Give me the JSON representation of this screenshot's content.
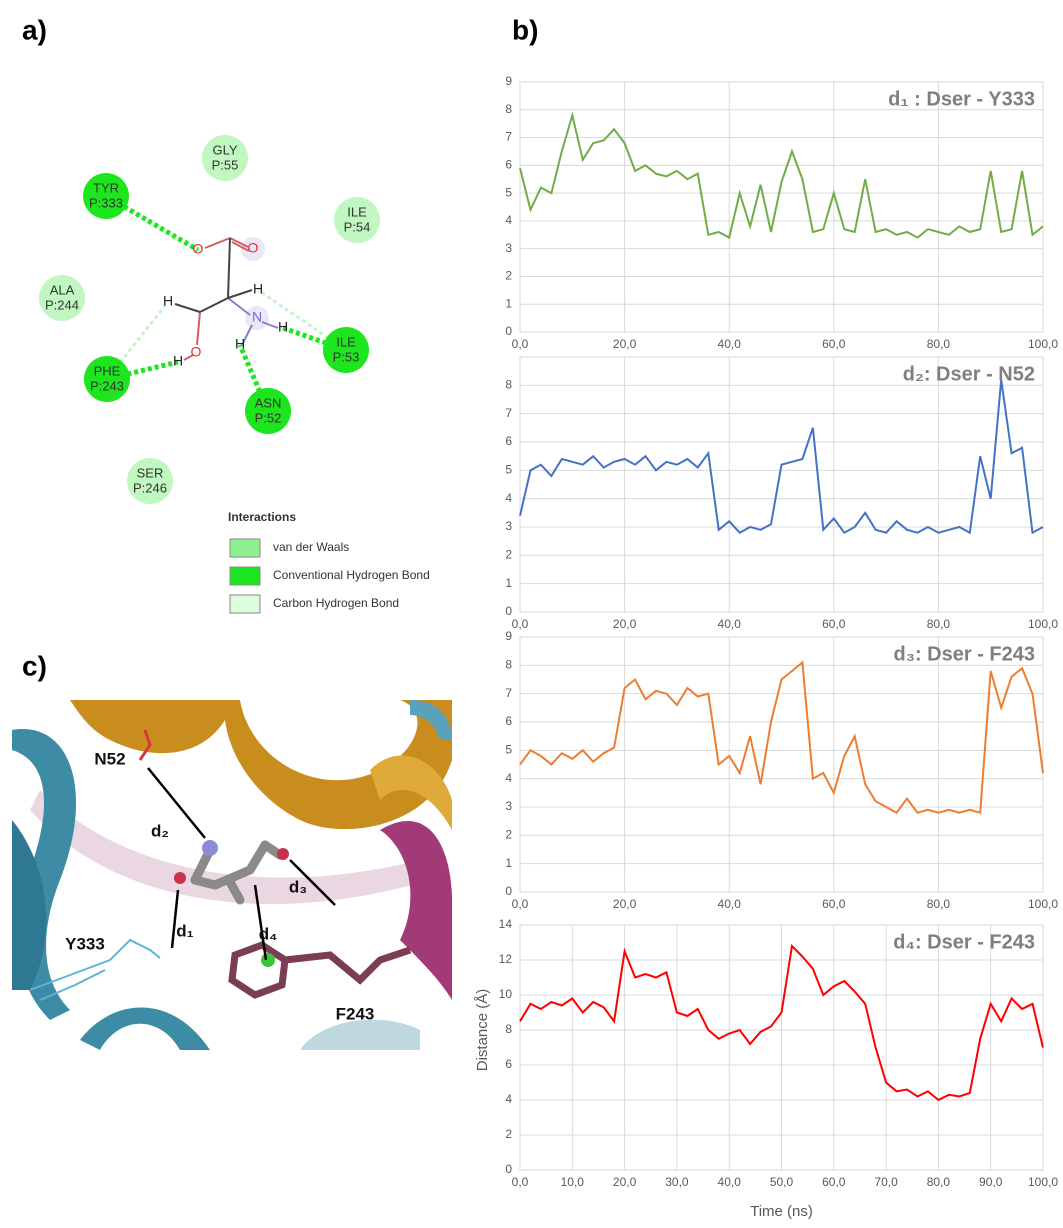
{
  "panel_labels": [
    "a)",
    "b)",
    "c)"
  ],
  "interaction_diagram": {
    "residues": [
      {
        "name": "GLY",
        "id": "P:55",
        "kind": "vdw"
      },
      {
        "name": "TYR",
        "id": "P:333",
        "kind": "hbond"
      },
      {
        "name": "ILE",
        "id": "P:54",
        "kind": "vdw"
      },
      {
        "name": "ALA",
        "id": "P:244",
        "kind": "vdw"
      },
      {
        "name": "PHE",
        "id": "P:243",
        "kind": "hbond"
      },
      {
        "name": "ILE",
        "id": "P:53",
        "kind": "hbond"
      },
      {
        "name": "ASN",
        "id": "P:52",
        "kind": "hbond"
      },
      {
        "name": "SER",
        "id": "P:246",
        "kind": "vdw"
      }
    ],
    "atoms": [
      "O",
      "O",
      "H",
      "H",
      "N",
      "H",
      "H",
      "O",
      "H"
    ],
    "legend": {
      "title": "Interactions",
      "items": [
        {
          "label": "van der Waals",
          "kind": "vdw",
          "color": "#8ef08e"
        },
        {
          "label": "Conventional Hydrogen Bond",
          "kind": "hbond",
          "color": "#1ee61e"
        },
        {
          "label": "Carbon Hydrogen Bond",
          "kind": "chbond",
          "color": "#dcfcdc"
        }
      ]
    }
  },
  "structure_labels": [
    "N52",
    "d₂",
    "d₃",
    "d₁",
    "d₄",
    "Y333",
    "F243"
  ],
  "chart_data": [
    {
      "type": "line",
      "title": "d₁ : Dser - Y333",
      "color": "#70ad47",
      "x": [
        0,
        2,
        4,
        6,
        8,
        10,
        12,
        14,
        16,
        18,
        20,
        22,
        24,
        26,
        28,
        30,
        32,
        34,
        36,
        38,
        40,
        42,
        44,
        46,
        48,
        50,
        52,
        54,
        56,
        58,
        60,
        62,
        64,
        66,
        68,
        70,
        72,
        74,
        76,
        78,
        80,
        82,
        84,
        86,
        88,
        90,
        92,
        94,
        96,
        98,
        100
      ],
      "values": [
        5.9,
        4.4,
        5.2,
        5.0,
        6.5,
        7.8,
        6.2,
        6.8,
        6.9,
        7.3,
        6.8,
        5.8,
        6.0,
        5.7,
        5.6,
        5.8,
        5.5,
        5.7,
        3.5,
        3.6,
        3.4,
        5.0,
        3.8,
        5.3,
        3.6,
        5.4,
        6.5,
        5.5,
        3.6,
        3.7,
        5.0,
        3.7,
        3.6,
        5.5,
        3.6,
        3.7,
        3.5,
        3.6,
        3.4,
        3.7,
        3.6,
        3.5,
        3.8,
        3.6,
        3.7,
        5.8,
        3.6,
        3.7,
        5.8,
        3.5,
        3.8
      ],
      "xlim": [
        0,
        100
      ],
      "ylim": [
        0,
        9
      ],
      "xticks": [
        {
          "value": 0,
          "label": "0,0"
        },
        {
          "value": 20,
          "label": "20,0"
        },
        {
          "value": 40,
          "label": "40,0"
        },
        {
          "value": 60,
          "label": "60,0"
        },
        {
          "value": 80,
          "label": "80,0"
        },
        {
          "value": 100,
          "label": "100,0"
        }
      ],
      "yticks": [
        0,
        1,
        2,
        3,
        4,
        5,
        6,
        7,
        8,
        9
      ],
      "grid": true
    },
    {
      "type": "line",
      "title": "d₂: Dser - N52",
      "color": "#4472c4",
      "x": [
        0,
        2,
        4,
        6,
        8,
        10,
        12,
        14,
        16,
        18,
        20,
        22,
        24,
        26,
        28,
        30,
        32,
        34,
        36,
        38,
        40,
        42,
        44,
        46,
        48,
        50,
        52,
        54,
        56,
        58,
        60,
        62,
        64,
        66,
        68,
        70,
        72,
        74,
        76,
        78,
        80,
        82,
        84,
        86,
        88,
        90,
        92,
        94,
        96,
        98,
        100
      ],
      "values": [
        3.4,
        5.0,
        5.2,
        4.8,
        5.4,
        5.3,
        5.2,
        5.5,
        5.1,
        5.3,
        5.4,
        5.2,
        5.5,
        5.0,
        5.3,
        5.2,
        5.4,
        5.1,
        5.6,
        2.9,
        3.2,
        2.8,
        3.0,
        2.9,
        3.1,
        5.2,
        5.3,
        5.4,
        6.5,
        2.9,
        3.3,
        2.8,
        3.0,
        3.5,
        2.9,
        2.8,
        3.2,
        2.9,
        2.8,
        3.0,
        2.8,
        2.9,
        3.0,
        2.8,
        5.5,
        4.0,
        8.2,
        5.6,
        5.8,
        2.8,
        3.0
      ],
      "xlim": [
        0,
        100
      ],
      "ylim": [
        0,
        9
      ],
      "xticks": [
        {
          "value": 0,
          "label": "0,0"
        },
        {
          "value": 20,
          "label": "20,0"
        },
        {
          "value": 40,
          "label": "40,0"
        },
        {
          "value": 60,
          "label": "60,0"
        },
        {
          "value": 80,
          "label": "80,0"
        },
        {
          "value": 100,
          "label": "100,0"
        }
      ],
      "yticks": [
        0,
        1,
        2,
        3,
        4,
        5,
        6,
        7,
        8
      ],
      "grid": true
    },
    {
      "type": "line",
      "title": "d₃: Dser - F243",
      "color": "#ed7d31",
      "x": [
        0,
        2,
        4,
        6,
        8,
        10,
        12,
        14,
        16,
        18,
        20,
        22,
        24,
        26,
        28,
        30,
        32,
        34,
        36,
        38,
        40,
        42,
        44,
        46,
        48,
        50,
        52,
        54,
        56,
        58,
        60,
        62,
        64,
        66,
        68,
        70,
        72,
        74,
        76,
        78,
        80,
        82,
        84,
        86,
        88,
        90,
        92,
        94,
        96,
        98,
        100
      ],
      "values": [
        4.5,
        5.0,
        4.8,
        4.5,
        4.9,
        4.7,
        5.0,
        4.6,
        4.9,
        5.1,
        7.2,
        7.5,
        6.8,
        7.1,
        7.0,
        6.6,
        7.2,
        6.9,
        7.0,
        4.5,
        4.8,
        4.2,
        5.5,
        3.8,
        6.0,
        7.5,
        7.8,
        8.1,
        4.0,
        4.2,
        3.5,
        4.8,
        5.5,
        3.8,
        3.2,
        3.0,
        2.8,
        3.3,
        2.8,
        2.9,
        2.8,
        2.9,
        2.8,
        2.9,
        2.8,
        7.8,
        6.5,
        7.6,
        7.9,
        7.0,
        4.2
      ],
      "xlim": [
        0,
        100
      ],
      "ylim": [
        0,
        9
      ],
      "xticks": [
        {
          "value": 0,
          "label": "0,0"
        },
        {
          "value": 20,
          "label": "20,0"
        },
        {
          "value": 40,
          "label": "40,0"
        },
        {
          "value": 60,
          "label": "60,0"
        },
        {
          "value": 80,
          "label": "80,0"
        },
        {
          "value": 100,
          "label": "100,0"
        }
      ],
      "yticks": [
        0,
        1,
        2,
        3,
        4,
        5,
        6,
        7,
        8,
        9
      ],
      "grid": true
    },
    {
      "type": "line",
      "title": "d₄: Dser - F243",
      "color": "#ff0000",
      "x_label": "Time (ns)",
      "y_label": "Distance (Å)",
      "x": [
        0,
        2,
        4,
        6,
        8,
        10,
        12,
        14,
        16,
        18,
        20,
        22,
        24,
        26,
        28,
        30,
        32,
        34,
        36,
        38,
        40,
        42,
        44,
        46,
        48,
        50,
        52,
        54,
        56,
        58,
        60,
        62,
        64,
        66,
        68,
        70,
        72,
        74,
        76,
        78,
        80,
        82,
        84,
        86,
        88,
        90,
        92,
        94,
        96,
        98,
        100
      ],
      "values": [
        8.5,
        9.5,
        9.2,
        9.6,
        9.4,
        9.8,
        9.0,
        9.6,
        9.3,
        8.5,
        12.5,
        11.0,
        11.2,
        11.0,
        11.3,
        9.0,
        8.8,
        9.2,
        8.0,
        7.5,
        7.8,
        8.0,
        7.2,
        7.9,
        8.2,
        9.0,
        12.8,
        12.2,
        11.5,
        10.0,
        10.5,
        10.8,
        10.2,
        9.5,
        7.0,
        5.0,
        4.5,
        4.6,
        4.2,
        4.5,
        4.0,
        4.3,
        4.2,
        4.4,
        7.5,
        9.5,
        8.5,
        9.8,
        9.2,
        9.5,
        7.0
      ],
      "xlim": [
        0,
        100
      ],
      "ylim": [
        0,
        14
      ],
      "xticks": [
        {
          "value": 0,
          "label": "0,0"
        },
        {
          "value": 10,
          "label": "10,0"
        },
        {
          "value": 20,
          "label": "20,0"
        },
        {
          "value": 30,
          "label": "30,0"
        },
        {
          "value": 40,
          "label": "40,0"
        },
        {
          "value": 50,
          "label": "50,0"
        },
        {
          "value": 60,
          "label": "60,0"
        },
        {
          "value": 70,
          "label": "70,0"
        },
        {
          "value": 80,
          "label": "80,0"
        },
        {
          "value": 90,
          "label": "90,0"
        },
        {
          "value": 100,
          "label": "100,0"
        }
      ],
      "yticks": [
        0,
        2,
        4,
        6,
        8,
        10,
        12,
        14
      ],
      "grid": true
    }
  ]
}
